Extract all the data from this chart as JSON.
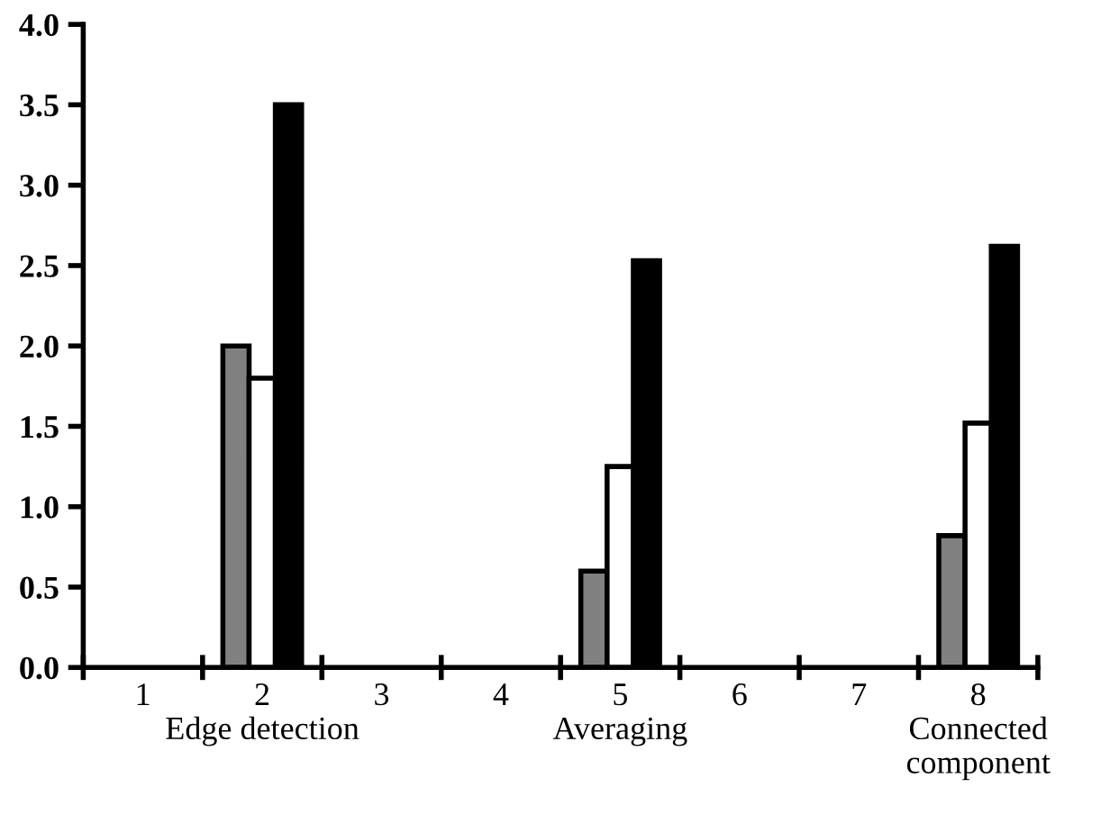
{
  "chart_data": {
    "type": "bar",
    "categories": [
      "1",
      "2\nEdge detection",
      "3",
      "4",
      "5\nAveraging",
      "6",
      "7",
      "8\nConnected\ncomponent"
    ],
    "series": [
      {
        "color": "#808080",
        "values": [
          null,
          2.0,
          null,
          null,
          0.6,
          null,
          null,
          0.82
        ]
      },
      {
        "color": "#ffffff",
        "values": [
          null,
          1.8,
          null,
          null,
          1.25,
          null,
          null,
          1.52
        ]
      },
      {
        "color": "#000000",
        "values": [
          null,
          3.5,
          null,
          null,
          2.53,
          null,
          null,
          2.62
        ]
      }
    ],
    "ylim": [
      0,
      4.0
    ],
    "yticks": [
      {
        "value": 0,
        "label": "0.0"
      },
      {
        "value": 0.5,
        "label": "0.5"
      },
      {
        "value": 1,
        "label": "1.0"
      },
      {
        "value": 1.5,
        "label": "1.5"
      },
      {
        "value": 2,
        "label": "2.0"
      },
      {
        "value": 2.5,
        "label": "2.5"
      },
      {
        "value": 3,
        "label": "3.0"
      },
      {
        "value": 3.5,
        "label": "3.5"
      },
      {
        "value": 4,
        "label": "4.0"
      }
    ],
    "grid": false,
    "legend": false
  }
}
